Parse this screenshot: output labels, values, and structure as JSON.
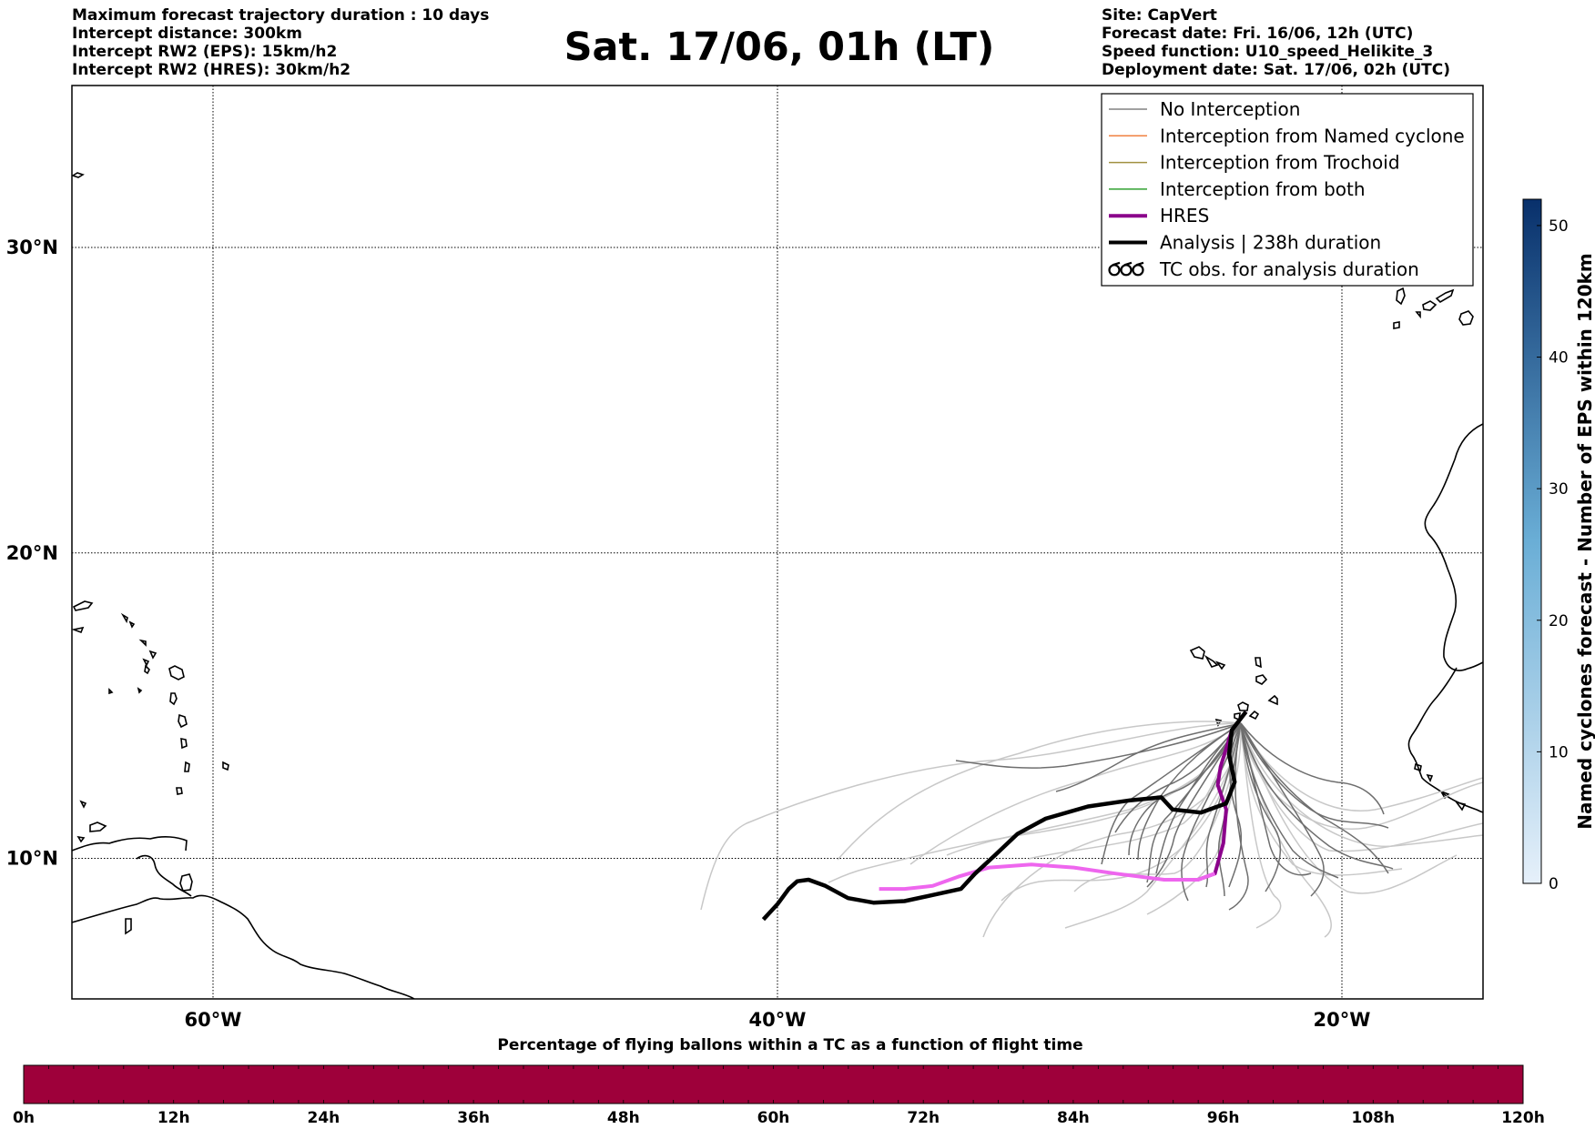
{
  "header": {
    "left": [
      "Maximum forecast trajectory duration : 10 days",
      "Intercept distance: 300km",
      "Intercept RW2 (EPS):  15km/h2",
      "Intercept RW2 (HRES): 30km/h2"
    ],
    "title": "Sat. 17/06, 01h (LT)",
    "right": [
      "Site: CapVert",
      "Forecast date: Fri. 16/06, 12h (UTC)",
      "Speed function: U10_speed_Helikite_3",
      "Deployment date: Sat. 17/06, 02h (UTC)"
    ]
  },
  "map": {
    "lat_labels": [
      "30°N",
      "20°N",
      "10°N"
    ],
    "lon_labels": [
      "60°W",
      "40°W",
      "20°W"
    ],
    "lat_values": [
      30,
      20,
      10
    ],
    "lon_values": [
      -60,
      -40,
      -20
    ],
    "extent": {
      "lon_min": -65,
      "lon_max": -15,
      "lat_min": 5.4,
      "lat_max": 35.3
    },
    "grid": "dotted"
  },
  "legend": {
    "items": [
      {
        "label": "No Interception",
        "color": "#808080",
        "kind": "thin"
      },
      {
        "label": "Interception from Named cyclone",
        "color": "#f08040",
        "kind": "thin"
      },
      {
        "label": "Interception from Trochoid",
        "color": "#a09040",
        "kind": "thin"
      },
      {
        "label": "Interception from both",
        "color": "#30a030",
        "kind": "thin"
      },
      {
        "label": "HRES",
        "color": "#8b008b",
        "kind": "thick"
      },
      {
        "label": "Analysis | 238h duration",
        "color": "#000000",
        "kind": "thick"
      },
      {
        "label": "TC obs. for analysis duration",
        "color": "#000000",
        "kind": "symbol"
      }
    ]
  },
  "colorbar": {
    "title": "Named cyclones forecast - Number of EPS within 120km",
    "ticks": [
      "0",
      "10",
      "20",
      "30",
      "40",
      "50"
    ],
    "tick_values": [
      0,
      10,
      20,
      30,
      40,
      50
    ],
    "max": 52,
    "color_low": "#e6f0fa",
    "color_high": "#08306b"
  },
  "timebar": {
    "title": "Percentage of flying ballons within a TC as a function of flight time",
    "ticks": [
      "0h",
      "12h",
      "24h",
      "36h",
      "48h",
      "60h",
      "72h",
      "84h",
      "96h",
      "108h",
      "120h"
    ],
    "color": "#9e003a"
  },
  "tracks": {
    "deployment": {
      "lon": -23.4,
      "lat": 14.8
    },
    "analysis": [
      [
        -23.4,
        14.8
      ],
      [
        -23.9,
        14.2
      ],
      [
        -24.0,
        13.4
      ],
      [
        -23.8,
        12.5
      ],
      [
        -24.1,
        11.8
      ],
      [
        -25.0,
        11.5
      ],
      [
        -26.0,
        11.6
      ],
      [
        -26.4,
        12.0
      ],
      [
        -27.5,
        11.9
      ],
      [
        -29.0,
        11.7
      ],
      [
        -30.5,
        11.3
      ],
      [
        -31.5,
        10.8
      ],
      [
        -32.3,
        10.1
      ],
      [
        -33.0,
        9.5
      ],
      [
        -33.5,
        9.0
      ],
      [
        -34.5,
        8.8
      ],
      [
        -35.5,
        8.6
      ],
      [
        -36.6,
        8.55
      ],
      [
        -37.5,
        8.7
      ],
      [
        -38.3,
        9.1
      ],
      [
        -38.9,
        9.3
      ],
      [
        -39.3,
        9.25
      ],
      [
        -39.6,
        9.0
      ],
      [
        -40.0,
        8.5
      ],
      [
        -40.5,
        8.0
      ]
    ],
    "hres": [
      [
        -23.4,
        14.8
      ],
      [
        -23.9,
        14.2
      ],
      [
        -24.3,
        13.0
      ],
      [
        -24.4,
        12.4
      ],
      [
        -24.1,
        11.6
      ],
      [
        -24.2,
        10.5
      ],
      [
        -24.5,
        9.5
      ],
      [
        -25.1,
        9.3
      ],
      [
        -26.3,
        9.3
      ],
      [
        -28.0,
        9.5
      ],
      [
        -29.5,
        9.7
      ],
      [
        -31.0,
        9.8
      ],
      [
        -32.5,
        9.7
      ],
      [
        -33.6,
        9.4
      ],
      [
        -34.5,
        9.1
      ],
      [
        -35.5,
        9.0
      ],
      [
        -36.4,
        9.0
      ]
    ]
  }
}
